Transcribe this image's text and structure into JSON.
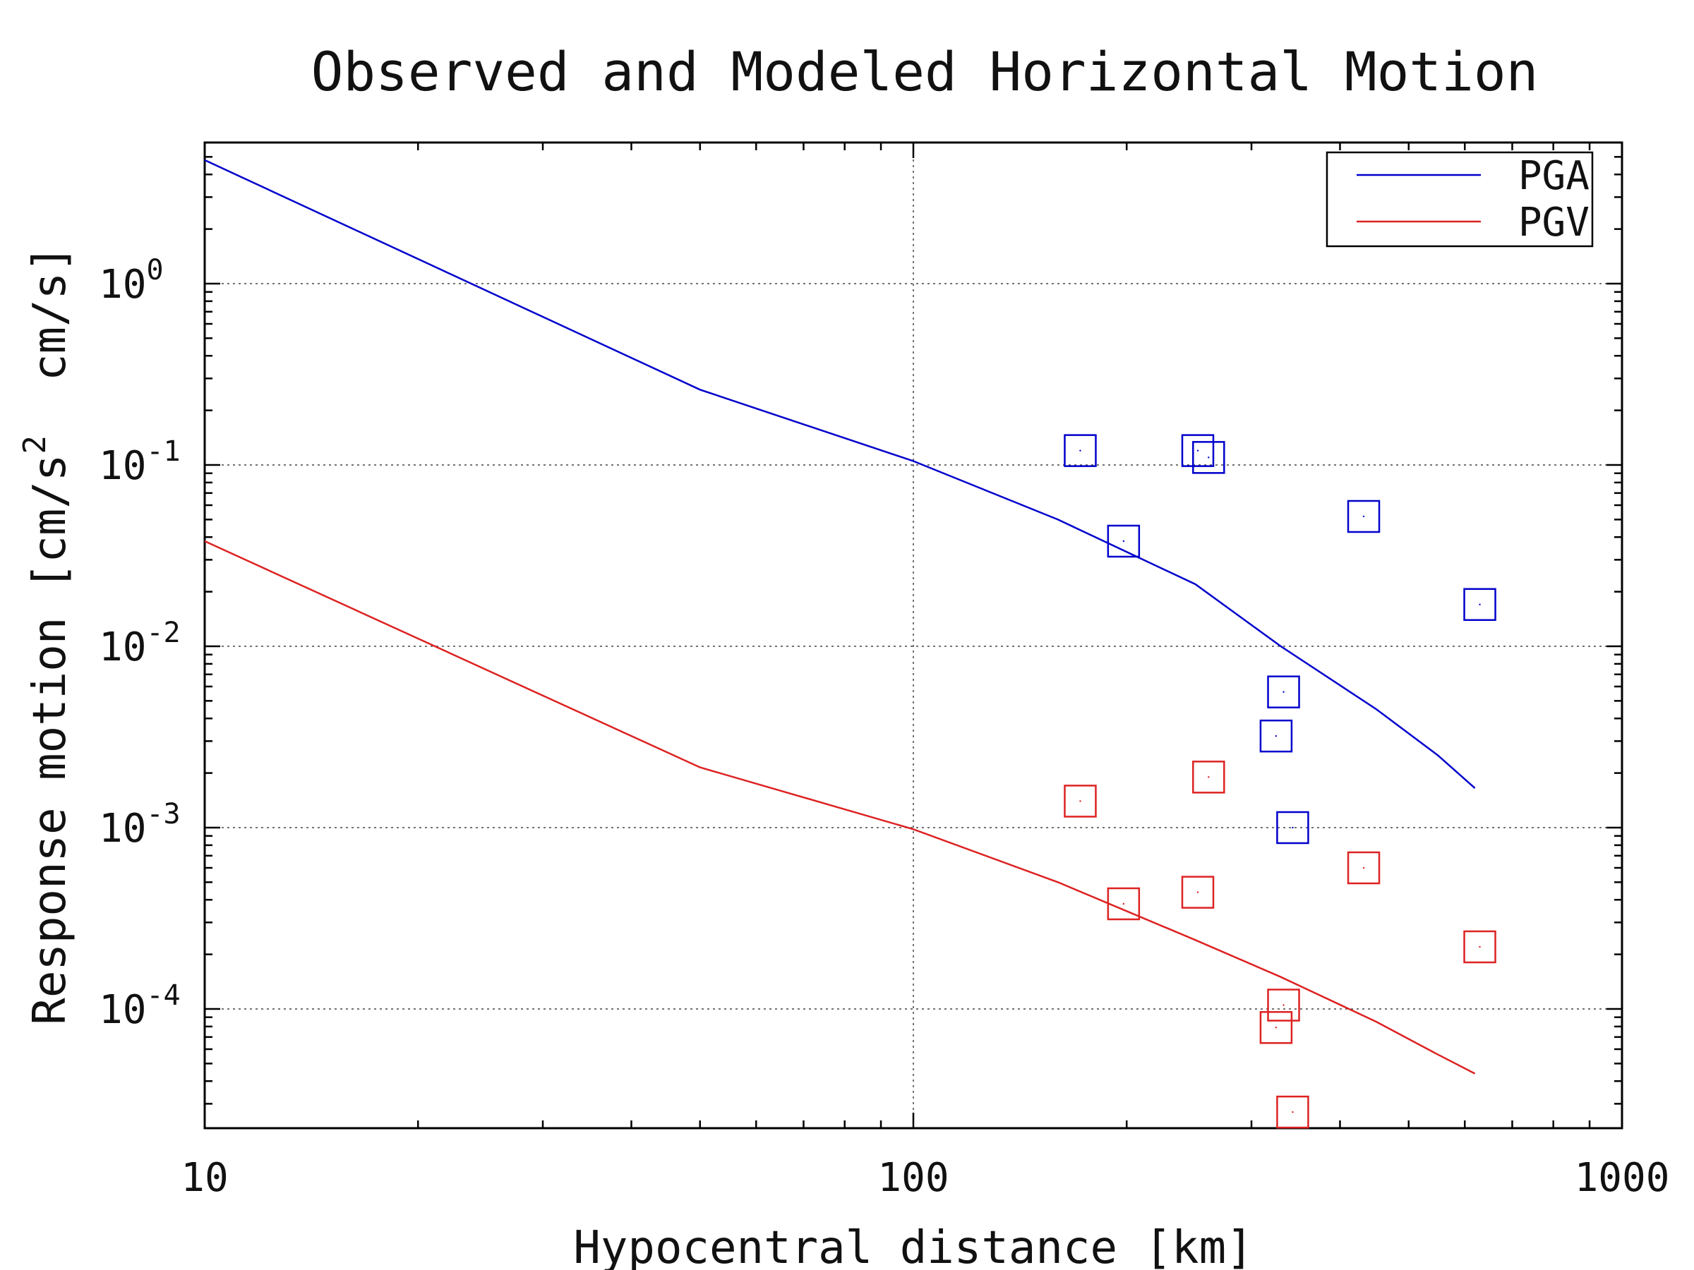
{
  "chart_data": {
    "type": "line",
    "title": "Observed and Modeled Horizontal Motion",
    "xlabel": "Hypocentral distance [km]",
    "ylabel": {
      "part1": "Response motion [cm/s",
      "sup": "2",
      "part2": "  cm/s]"
    },
    "x_scale": "log",
    "y_scale": "log",
    "xlim": [
      10,
      1000
    ],
    "ylim": [
      2.2e-05,
      6
    ],
    "grid": true,
    "legend_position": "top-right",
    "x_ticks": [
      {
        "value": 10,
        "label": "10"
      },
      {
        "value": 100,
        "label": "100"
      },
      {
        "value": 1000,
        "label": "1000"
      }
    ],
    "y_ticks": [
      {
        "value": 1,
        "label_base": "10",
        "label_exp": "0"
      },
      {
        "value": 0.1,
        "label_base": "10",
        "label_exp": "-1"
      },
      {
        "value": 0.01,
        "label_base": "10",
        "label_exp": "-2"
      },
      {
        "value": 0.001,
        "label_base": "10",
        "label_exp": "-3"
      },
      {
        "value": 0.0001,
        "label_base": "10",
        "label_exp": "-4"
      }
    ],
    "series": [
      {
        "name": "PGA",
        "color": "#0000cc",
        "model_x": [
          10,
          50,
          100,
          160,
          250,
          330,
          450,
          550,
          620
        ],
        "model_y": [
          4.8,
          0.26,
          0.105,
          0.05,
          0.022,
          0.01,
          0.0045,
          0.0025,
          0.00165
        ],
        "observed": [
          {
            "x": 172,
            "y": 0.12
          },
          {
            "x": 198,
            "y": 0.038
          },
          {
            "x": 252,
            "y": 0.12
          },
          {
            "x": 261,
            "y": 0.11
          },
          {
            "x": 325,
            "y": 0.0032
          },
          {
            "x": 333,
            "y": 0.0056
          },
          {
            "x": 343,
            "y": 0.001
          },
          {
            "x": 432,
            "y": 0.052
          },
          {
            "x": 630,
            "y": 0.017
          }
        ]
      },
      {
        "name": "PGV",
        "color": "#dd2222",
        "model_x": [
          10,
          50,
          100,
          160,
          250,
          330,
          450,
          550,
          620
        ],
        "model_y": [
          0.038,
          0.00215,
          0.00098,
          0.0005,
          0.00024,
          0.00015,
          8.5e-05,
          5.6e-05,
          4.4e-05
        ],
        "observed": [
          {
            "x": 172,
            "y": 0.0014
          },
          {
            "x": 198,
            "y": 0.00038
          },
          {
            "x": 252,
            "y": 0.00044
          },
          {
            "x": 261,
            "y": 0.0019
          },
          {
            "x": 325,
            "y": 7.9e-05
          },
          {
            "x": 333,
            "y": 0.000105
          },
          {
            "x": 343,
            "y": 2.7e-05
          },
          {
            "x": 432,
            "y": 0.0006
          },
          {
            "x": 630,
            "y": 0.00022
          }
        ]
      }
    ]
  }
}
